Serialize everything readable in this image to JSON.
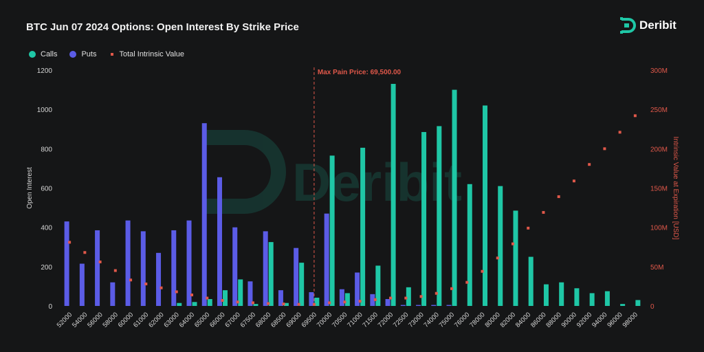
{
  "header": {
    "title": "BTC Jun 07 2024 Options: Open Interest By Strike Price",
    "brand": "Deribit"
  },
  "legend": {
    "calls": "Calls",
    "puts": "Puts",
    "intrinsic": "Total Intrinsic Value"
  },
  "watermark": "Deribit",
  "colors": {
    "calls": "#1fc7a6",
    "puts": "#5b5ce6",
    "intrinsic": "#e0584a",
    "background": "#151617"
  },
  "chart_data": {
    "type": "bar",
    "title": "BTC Jun 07 2024 Options: Open Interest By Strike Price",
    "ylabel": "Open Interest",
    "y2label": "Intrinsic Value at Expiration [USD]",
    "ylim": [
      0,
      1200
    ],
    "y2lim": [
      0,
      300000000
    ],
    "yticks": [
      "0",
      "200",
      "400",
      "600",
      "800",
      "1000",
      "1200"
    ],
    "y2ticks": [
      "0",
      "50M",
      "100M",
      "150M",
      "200M",
      "250M",
      "300M"
    ],
    "annotation": {
      "label": "Max Pain Price: 69,500.00",
      "strike": "69500"
    },
    "categories": [
      "52000",
      "54000",
      "56000",
      "58000",
      "60000",
      "61000",
      "62000",
      "63000",
      "64000",
      "65000",
      "66000",
      "67000",
      "67500",
      "68000",
      "68500",
      "69000",
      "69500",
      "70000",
      "70500",
      "71000",
      "71500",
      "72000",
      "72500",
      "73000",
      "74000",
      "75000",
      "76000",
      "78000",
      "80000",
      "82000",
      "84000",
      "86000",
      "88000",
      "90000",
      "92000",
      "94000",
      "96000",
      "98000"
    ],
    "series": [
      {
        "name": "Calls",
        "values": [
          0,
          0,
          0,
          0,
          0,
          0,
          0,
          15,
          20,
          35,
          80,
          135,
          10,
          325,
          15,
          220,
          42,
          765,
          65,
          805,
          205,
          1130,
          95,
          885,
          915,
          1100,
          620,
          1020,
          610,
          485,
          250,
          110,
          120,
          90,
          65,
          75,
          10,
          30
        ]
      },
      {
        "name": "Puts",
        "values": [
          430,
          215,
          385,
          120,
          435,
          380,
          270,
          385,
          435,
          930,
          655,
          400,
          125,
          380,
          80,
          295,
          70,
          470,
          85,
          170,
          60,
          35,
          5,
          5,
          5,
          5,
          0,
          0,
          0,
          0,
          0,
          0,
          0,
          0,
          0,
          0,
          0,
          0
        ]
      },
      {
        "name": "Total Intrinsic Value",
        "values": [
          81000000,
          68000000,
          56000000,
          45000000,
          33000000,
          28000000,
          23000000,
          18000000,
          14000000,
          10000000,
          7000000,
          5000000,
          4000000,
          3000000,
          2500000,
          2000000,
          2000000,
          4000000,
          5000000,
          6000000,
          8000000,
          10000000,
          10000000,
          12000000,
          16000000,
          22000000,
          30000000,
          44000000,
          61000000,
          79000000,
          99000000,
          119000000,
          139000000,
          159000000,
          180000000,
          200000000,
          221000000,
          242000000
        ]
      }
    ]
  }
}
